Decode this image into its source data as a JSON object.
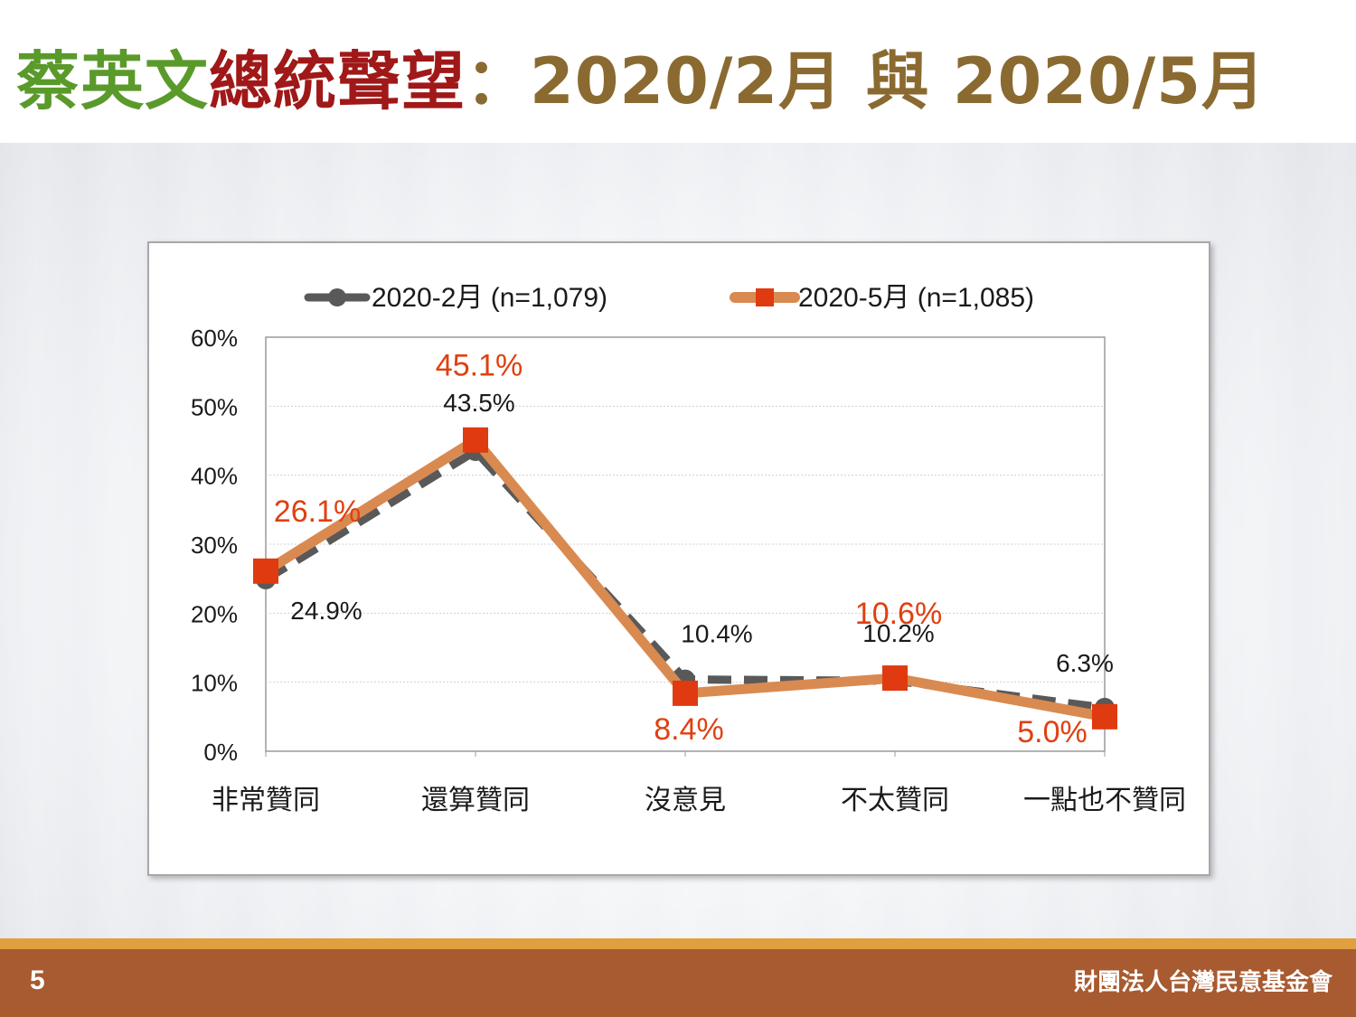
{
  "title": {
    "part1": "蔡英文",
    "part2": "總統聲望",
    "sep": "：",
    "part3": "2020/2月",
    "part4": " 與 2020/5月"
  },
  "footer": {
    "page_number": "5",
    "organization": "財團法人台灣民意基金會"
  },
  "colors": {
    "series_feb": "#595959",
    "series_may": "#d98a50",
    "marker_may": "#e03a10",
    "label_may": "#e04010",
    "label_feb": "#1a1a1a",
    "footer": "#a85a30",
    "footer_strip": "#e0a040"
  },
  "chart_data": {
    "type": "line",
    "categories": [
      "非常贊同",
      "還算贊同",
      "沒意見",
      "不太贊同",
      "一點也不贊同"
    ],
    "series": [
      {
        "name": "2020-2月 (n=1,079)",
        "values": [
          24.9,
          43.5,
          10.4,
          10.2,
          6.3
        ],
        "labels": [
          "24.9%",
          "43.5%",
          "10.4%",
          "10.2%",
          "6.3%"
        ]
      },
      {
        "name": "2020-5月 (n=1,085)",
        "values": [
          26.1,
          45.1,
          8.4,
          10.6,
          5.0
        ],
        "labels": [
          "26.1%",
          "45.1%",
          "8.4%",
          "10.6%",
          "5.0%"
        ]
      }
    ],
    "ylim": [
      0,
      60
    ],
    "yticks": [
      0,
      10,
      20,
      30,
      40,
      50,
      60
    ],
    "ytick_labels": [
      "0%",
      "10%",
      "20%",
      "30%",
      "40%",
      "50%",
      "60%"
    ],
    "grid": true,
    "legend_position": "top"
  }
}
